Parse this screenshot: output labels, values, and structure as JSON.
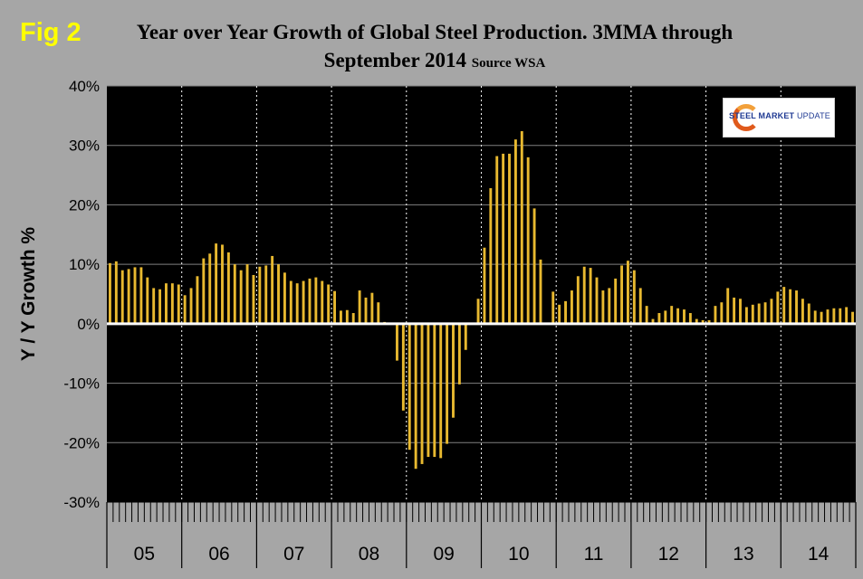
{
  "header": {
    "fig_label": "Fig 2",
    "title_line1": "Year over Year Growth of Global Steel Production. 3MMA through",
    "title_line2": "September 2014",
    "source": "Source WSA"
  },
  "logo": {
    "bold_text": "STEEL MARKET",
    "light_text": " UPDATE"
  },
  "colors": {
    "bar": "#e8b930",
    "plot_bg": "#000000",
    "page_bg": "#a6a6a6",
    "gridline": "#808080",
    "zero_line": "#ffffff",
    "fig_label": "#ffff00"
  },
  "chart_data": {
    "type": "bar",
    "title": "Year over Year Growth of Global Steel Production. 3MMA through September 2014",
    "xlabel": "",
    "ylabel": "Y / Y Growth %",
    "ylim": [
      -30,
      40
    ],
    "yticks": [
      "-30%",
      "-20%",
      "-10%",
      "0%",
      "10%",
      "20%",
      "30%",
      "40%"
    ],
    "ytick_values": [
      -30,
      -20,
      -10,
      0,
      10,
      20,
      30,
      40
    ],
    "grid": "horizontal and vertical (year boundaries)",
    "year_labels": [
      "05",
      "06",
      "07",
      "08",
      "09",
      "10",
      "11",
      "12",
      "13",
      "14"
    ],
    "months_per_year": 12,
    "values": [
      10.2,
      10.5,
      9.0,
      9.2,
      9.5,
      9.5,
      7.8,
      6.0,
      5.8,
      6.8,
      6.8,
      6.6,
      4.8,
      6.0,
      8.0,
      11.0,
      11.8,
      13.5,
      13.3,
      12.0,
      10.0,
      9.0,
      10.0,
      8.2,
      9.6,
      9.8,
      11.4,
      10.0,
      8.6,
      7.2,
      6.8,
      7.2,
      7.6,
      7.8,
      7.2,
      6.6,
      5.5,
      2.2,
      2.3,
      1.8,
      5.6,
      4.4,
      5.2,
      3.6,
      0.3,
      0.0,
      -6.2,
      -14.6,
      -21.2,
      -24.4,
      -23.6,
      -22.4,
      -22.4,
      -22.6,
      -20.2,
      -15.8,
      -10.2,
      -4.4,
      0.2,
      4.2,
      12.8,
      22.8,
      28.2,
      28.6,
      28.6,
      31.0,
      32.4,
      28.0,
      19.4,
      10.8,
      0.2,
      5.4,
      3.2,
      3.8,
      5.6,
      8.0,
      9.6,
      9.4,
      7.8,
      5.6,
      6.0,
      7.6,
      9.8,
      10.6,
      9.0,
      6.0,
      3.0,
      0.8,
      1.8,
      2.2,
      3.0,
      2.6,
      2.4,
      1.8,
      0.8,
      0.6,
      0.6,
      3.0,
      3.6,
      6.0,
      4.4,
      4.2,
      2.8,
      3.2,
      3.4,
      3.6,
      4.2,
      5.4,
      6.2,
      5.8,
      5.6,
      4.2,
      3.4,
      2.2,
      2.0,
      2.4,
      2.6,
      2.6,
      2.8,
      2.0
    ]
  }
}
